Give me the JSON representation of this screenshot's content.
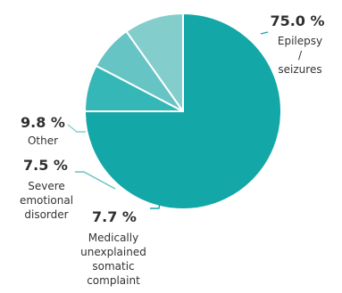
{
  "chart_data": {
    "type": "pie",
    "title": "",
    "slices": [
      {
        "name": "Epilepsy / seizures",
        "label_lines": [
          "Epilepsy",
          "/",
          "seizures"
        ],
        "value": 75.0,
        "display": "75.0 %",
        "color": "#13a7a7",
        "leader_color": "#13a7a7"
      },
      {
        "name": "Medically unexplained somatic complaint",
        "label_lines": [
          "Medically",
          "unexplained",
          "somatic",
          "complaint"
        ],
        "value": 7.7,
        "display": "7.7 %",
        "color": "#36b7b7",
        "leader_color": "#13a7a7"
      },
      {
        "name": "Severe emotional disorder",
        "label_lines": [
          "Severe",
          "emotional",
          "disorder"
        ],
        "value": 7.5,
        "display": "7.5 %",
        "color": "#66c4c4",
        "leader_color": "#66c4c4"
      },
      {
        "name": "Other",
        "label_lines": [
          "Other"
        ],
        "value": 9.8,
        "display": "9.8 %",
        "color": "#84cdcd",
        "leader_color": "#84cdcd"
      }
    ],
    "start_angle_deg": 270,
    "direction": "clockwise",
    "legend": "none"
  }
}
